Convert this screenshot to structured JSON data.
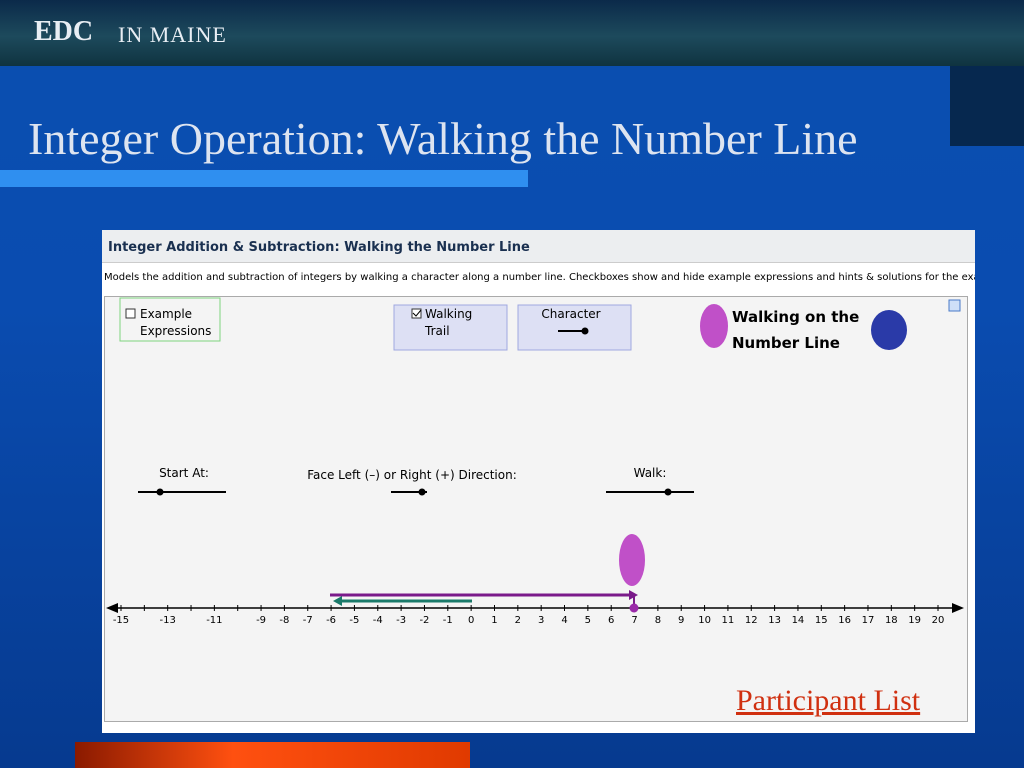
{
  "header": {
    "logo": "EDC",
    "logo_suffix": "IN MAINE"
  },
  "slide": {
    "title": "Integer Operation: Walking the Number Line",
    "link": "Participant List"
  },
  "applet": {
    "title": "Integer Addition & Subtraction: Walking the Number Line",
    "description": "Models the addition and subtraction of integers by walking a character along a number line. Checkboxes show and hide example expressions and hints & solutions for the exa",
    "checkbox_examples": "Example Expressions",
    "checkbox_trail": "Walking Trail",
    "character_label": "Character",
    "banner": "Walking on the Number Line",
    "start_label": "Start At:",
    "direction_label": "Face Left (–) or Right (+) Direction:",
    "walk_label": "Walk:",
    "number_line_labels": [
      -15,
      -13,
      -11,
      -9,
      -8,
      -7,
      -6,
      -5,
      -4,
      -3,
      -2,
      -1,
      0,
      1,
      2,
      3,
      4,
      5,
      6,
      7,
      8,
      9,
      10,
      11,
      12,
      13,
      14,
      15,
      16,
      17,
      18,
      19,
      20
    ]
  }
}
